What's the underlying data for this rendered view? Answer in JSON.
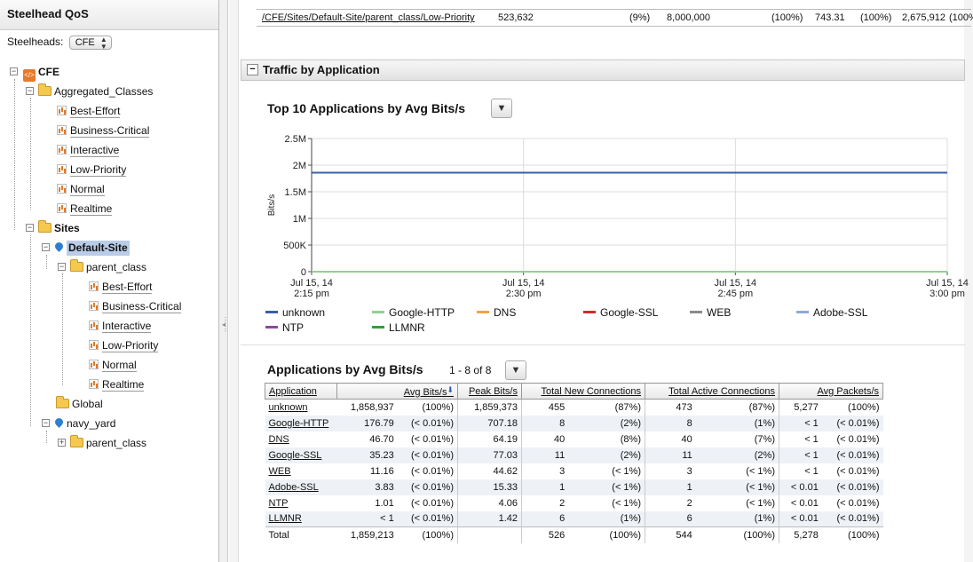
{
  "sidebar": {
    "title": "Steelhead QoS",
    "steelheads_label": "Steelheads:",
    "steelheads_value": "CFE",
    "tree": {
      "root": "CFE",
      "aggregated": "Aggregated_Classes",
      "aggregated_items": [
        "Best-Effort",
        "Business-Critical",
        "Interactive",
        "Low-Priority",
        "Normal",
        "Realtime"
      ],
      "sites": "Sites",
      "default_site": "Default-Site",
      "parent_class": "parent_class",
      "parent_items": [
        "Best-Effort",
        "Business-Critical",
        "Interactive",
        "Low-Priority",
        "Normal",
        "Realtime"
      ],
      "global": "Global",
      "navy_yard": "navy_yard",
      "navy_parent": "parent_class"
    }
  },
  "top_row": {
    "path": "/CFE/Sites/Default-Site/parent_class/Low-Priority",
    "v1": "523,632",
    "p1": "(9%)",
    "v2": "8,000,000",
    "p2": "(100%)",
    "v3": "743.31",
    "p3": "(100%)",
    "v4": "2,675,912",
    "p4": "(100%"
  },
  "section": {
    "title": "Traffic by Application",
    "collapse_symbol": "−"
  },
  "chart_data": {
    "type": "line",
    "title": "Top 10 Applications by Avg Bits/s",
    "ylabel": "Bits/s",
    "ylim": [
      0,
      2500000
    ],
    "yticks": [
      "0",
      "500K",
      "1M",
      "1.5M",
      "2M",
      "2.5M"
    ],
    "yticks_values": [
      0,
      500000,
      1000000,
      1500000,
      2000000,
      2500000
    ],
    "x_start": "2:15 pm",
    "x_end": "3:00 pm",
    "xticks": [
      {
        "date": "Jul 15, 14",
        "time": "2:15 pm"
      },
      {
        "date": "Jul 15, 14",
        "time": "2:30 pm"
      },
      {
        "date": "Jul 15, 14",
        "time": "2:45 pm"
      },
      {
        "date": "Jul 15, 14",
        "time": "3:00 pm"
      }
    ],
    "series": [
      {
        "name": "unknown",
        "color": "#3a5fa8",
        "values": [
          1858937,
          1858937
        ]
      },
      {
        "name": "Google-HTTP",
        "color": "#8fd18f",
        "values": [
          177,
          177
        ]
      },
      {
        "name": "DNS",
        "color": "#f5a340",
        "values": [
          47,
          47
        ]
      },
      {
        "name": "Google-SSL",
        "color": "#d62b2b",
        "values": [
          35,
          35
        ]
      },
      {
        "name": "WEB",
        "color": "#8a8a8a",
        "values": [
          11,
          11
        ]
      },
      {
        "name": "Adobe-SSL",
        "color": "#8fa9d8",
        "values": [
          4,
          4
        ]
      },
      {
        "name": "NTP",
        "color": "#8a4aa0",
        "values": [
          1,
          1
        ]
      },
      {
        "name": "LLMNR",
        "color": "#3a9a3a",
        "values": [
          1,
          1
        ]
      }
    ],
    "grid": true
  },
  "table": {
    "title": "Applications by Avg Bits/s",
    "range": "1 - 8 of 8",
    "sort_arrow": "⬇",
    "headers": [
      "Application",
      "Avg Bits/s",
      "Peak Bits/s",
      "Total New Connections",
      "Total Active Connections",
      "Avg Packets/s"
    ],
    "rows": [
      [
        "unknown",
        "1,858,937",
        "(100%)",
        "1,859,373",
        "455",
        "(87%)",
        "473",
        "(87%)",
        "5,277",
        "(100%)"
      ],
      [
        "Google-HTTP",
        "176.79",
        "(< 0.01%)",
        "707.18",
        "8",
        "(2%)",
        "8",
        "(1%)",
        "< 1",
        "(< 0.01%)"
      ],
      [
        "DNS",
        "46.70",
        "(< 0.01%)",
        "64.19",
        "40",
        "(8%)",
        "40",
        "(7%)",
        "< 1",
        "(< 0.01%)"
      ],
      [
        "Google-SSL",
        "35.23",
        "(< 0.01%)",
        "77.03",
        "11",
        "(2%)",
        "11",
        "(2%)",
        "< 1",
        "(< 0.01%)"
      ],
      [
        "WEB",
        "11.16",
        "(< 0.01%)",
        "44.62",
        "3",
        "(< 1%)",
        "3",
        "(< 1%)",
        "< 1",
        "(< 0.01%)"
      ],
      [
        "Adobe-SSL",
        "3.83",
        "(< 0.01%)",
        "15.33",
        "1",
        "(< 1%)",
        "1",
        "(< 1%)",
        "< 0.01",
        "(< 0.01%)"
      ],
      [
        "NTP",
        "1.01",
        "(< 0.01%)",
        "4.06",
        "2",
        "(< 1%)",
        "2",
        "(< 1%)",
        "< 0.01",
        "(< 0.01%)"
      ],
      [
        "LLMNR",
        "< 1",
        "(< 0.01%)",
        "1.42",
        "6",
        "(1%)",
        "6",
        "(1%)",
        "< 0.01",
        "(< 0.01%)"
      ]
    ],
    "total": [
      "Total",
      "1,859,213",
      "(100%)",
      "",
      "526",
      "(100%)",
      "544",
      "(100%)",
      "5,278",
      "(100%)"
    ]
  },
  "icons": {
    "cfe": "appliance-icon",
    "folder": "folder-icon",
    "report": "chart-icon",
    "site": "pin-icon",
    "dropdown": "chevron-down-icon"
  }
}
